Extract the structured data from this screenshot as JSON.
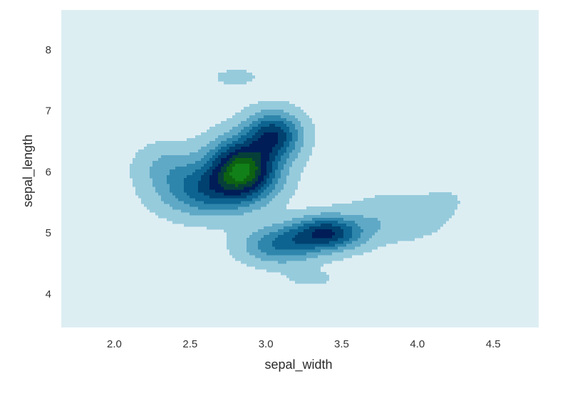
{
  "chart_data": {
    "type": "kde-contour",
    "xlabel": "sepal_width",
    "ylabel": "sepal_length",
    "xlim": [
      1.65,
      4.8
    ],
    "ylim": [
      3.45,
      8.65
    ],
    "xticks": [
      2.0,
      2.5,
      3.0,
      3.5,
      4.0,
      4.5
    ],
    "xtick_labels": [
      "2.0",
      "2.5",
      "3.0",
      "3.5",
      "4.0",
      "4.5"
    ],
    "yticks": [
      4,
      5,
      6,
      7,
      8
    ],
    "ytick_labels": [
      "4",
      "5",
      "6",
      "7",
      "8"
    ],
    "grid": false,
    "colormap": "ocean_r",
    "background_color": "#ddeef3",
    "level_colors": [
      "#96cbdc",
      "#5fa9c6",
      "#2f86ac",
      "#0d6490",
      "#00416f",
      "#001d58",
      "#063f3a",
      "#0d6212",
      "#128018"
    ],
    "density_peaks": [
      {
        "x": 2.85,
        "y": 6.05,
        "sx": 0.15,
        "sy": 0.32,
        "w": 1.0
      },
      {
        "x": 3.05,
        "y": 6.6,
        "sx": 0.12,
        "sy": 0.25,
        "w": 0.62
      },
      {
        "x": 2.6,
        "y": 5.7,
        "sx": 0.2,
        "sy": 0.28,
        "w": 0.45
      },
      {
        "x": 2.35,
        "y": 6.1,
        "sx": 0.14,
        "sy": 0.25,
        "w": 0.16
      },
      {
        "x": 3.4,
        "y": 5.0,
        "sx": 0.16,
        "sy": 0.18,
        "w": 0.66
      },
      {
        "x": 3.1,
        "y": 4.8,
        "sx": 0.17,
        "sy": 0.2,
        "w": 0.4
      },
      {
        "x": 3.85,
        "y": 5.25,
        "sx": 0.22,
        "sy": 0.25,
        "w": 0.14
      },
      {
        "x": 4.2,
        "y": 5.55,
        "sx": 0.12,
        "sy": 0.18,
        "w": 0.04
      },
      {
        "x": 2.8,
        "y": 7.55,
        "sx": 0.13,
        "sy": 0.12,
        "w": 0.07
      },
      {
        "x": 3.3,
        "y": 4.25,
        "sx": 0.15,
        "sy": 0.12,
        "w": 0.06
      },
      {
        "x": 3.8,
        "y": 7.8,
        "sx": 0.04,
        "sy": 0.1,
        "w": 0.045
      }
    ]
  }
}
